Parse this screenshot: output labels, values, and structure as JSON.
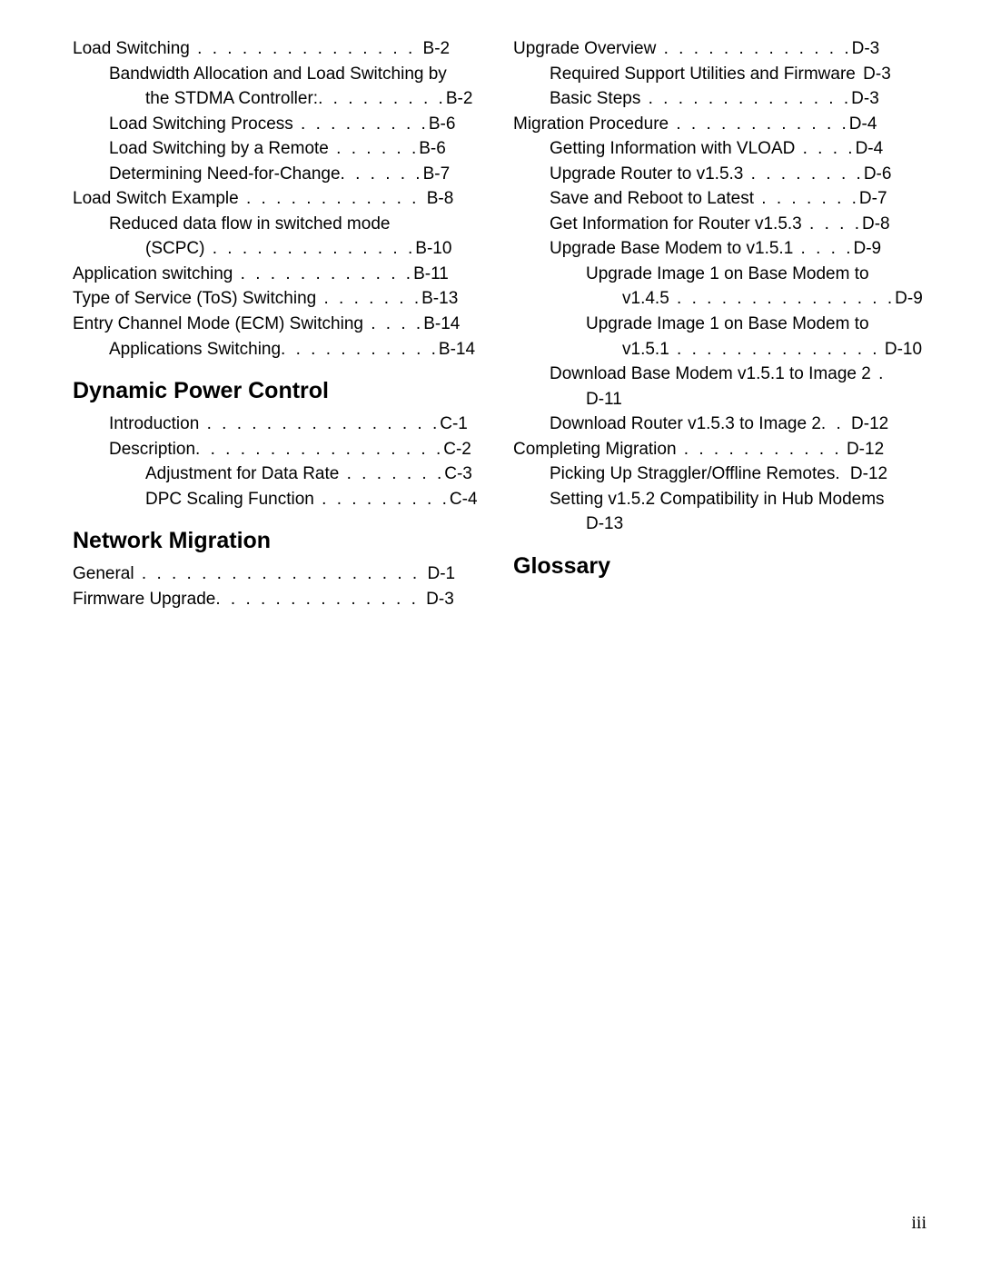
{
  "left": [
    {
      "indent": 0,
      "text": "Load Switching",
      "dots": " . . . . . . . . . . . . . . .  ",
      "page": "B-2"
    },
    {
      "indent": 1,
      "text": "Bandwidth Allocation and Load Switching by",
      "dots": "",
      "page": ""
    },
    {
      "indent": 2,
      "text": "the STDMA Controller:",
      "dots": ". . . . . . . . .",
      "page": "B-2"
    },
    {
      "indent": 1,
      "text": "Load Switching Process",
      "dots": " . . . . . . . . .",
      "page": "B-6"
    },
    {
      "indent": 1,
      "text": "Load Switching by a Remote",
      "dots": "  . . . . . .",
      "page": "B-6"
    },
    {
      "indent": 1,
      "text": "Determining Need-for-Change",
      "dots": ". . . . . .",
      "page": "B-7"
    },
    {
      "indent": 0,
      "text": "Load Switch Example",
      "dots": " . . . . . . . . . . . .  ",
      "page": "B-8"
    },
    {
      "indent": 1,
      "text": "Reduced data flow in switched mode",
      "dots": "",
      "page": ""
    },
    {
      "indent": 2,
      "text": "(SCPC)",
      "dots": "  . . . . . . . . . . . . . .",
      "page": "B-10"
    },
    {
      "indent": 0,
      "text": "Application switching",
      "dots": "  . . . . . . . . . . . .",
      "page": "B-11"
    },
    {
      "indent": 0,
      "text": "Type of Service (ToS) Switching",
      "dots": "  . . . . . . .",
      "page": "B-13"
    },
    {
      "indent": 0,
      "text": "Entry Channel Mode (ECM) Switching",
      "dots": "  . . . .",
      "page": "B-14"
    },
    {
      "indent": 1,
      "text": "Applications Switching",
      "dots": ". . . . . . . . . . .",
      "page": "B-14"
    }
  ],
  "dpc_head": "Dynamic Power Control",
  "dpc": [
    {
      "indent": 1,
      "text": "Introduction",
      "dots": " . . . . . . . . . . . . . . . .",
      "page": "C-1"
    },
    {
      "indent": 1,
      "text": "Description",
      "dots": ". . . . . . . . . . . . . . . . .",
      "page": "C-2"
    },
    {
      "indent": 2,
      "text": "Adjustment for Data Rate",
      "dots": " . . . . . . .",
      "page": "C-3"
    },
    {
      "indent": 2,
      "text": "DPC Scaling Function",
      "dots": " . . . . . . . . .",
      "page": "C-4"
    }
  ],
  "nm_head": "Network Migration",
  "nm": [
    {
      "indent": 0,
      "text": "General",
      "dots": " . . . . . . . . . . . . . . . . . . . ",
      "page": "D-1"
    },
    {
      "indent": 0,
      "text": "Firmware Upgrade",
      "dots": ". . . . . . . . . . . . . . ",
      "page": "D-3"
    }
  ],
  "right": [
    {
      "indent": 0,
      "text": "Upgrade Overview",
      "dots": "  . . . . . . . . . . . . .",
      "page": "D-3"
    },
    {
      "indent": 1,
      "text": "Required Support Utilities and Firmware",
      "dots": " ",
      "page": "D-3"
    },
    {
      "indent": 1,
      "text": "Basic Steps",
      "dots": " . . . . . . . . . . . . . .",
      "page": "D-3"
    },
    {
      "indent": 0,
      "text": "Migration Procedure",
      "dots": "  . . . . . . . . . . . .",
      "page": "D-4"
    },
    {
      "indent": 1,
      "text": "Getting Information with VLOAD",
      "dots": "  . . . .",
      "page": "D-4"
    },
    {
      "indent": 1,
      "text": "Upgrade Router to v1.5.3",
      "dots": " . . . . . . . .",
      "page": "D-6"
    },
    {
      "indent": 1,
      "text": "Save and Reboot to Latest",
      "dots": " . . . . . . .",
      "page": "D-7"
    },
    {
      "indent": 1,
      "text": "Get Information for Router v1.5.3",
      "dots": " . . . .",
      "page": "D-8"
    },
    {
      "indent": 1,
      "text": "Upgrade Base Modem to v1.5.1",
      "dots": "  . . . .",
      "page": "D-9"
    },
    {
      "indent": 2,
      "text": "Upgrade Image 1 on Base Modem to",
      "dots": "",
      "page": ""
    },
    {
      "indent": 3,
      "text": "v1.4.5",
      "dots": "  . . . . . . . . . . . . . . .",
      "page": "D-9"
    },
    {
      "indent": 2,
      "text": "Upgrade Image 1 on Base Modem to",
      "dots": "",
      "page": ""
    },
    {
      "indent": 3,
      "text": "v1.5.1",
      "dots": "  . . . . . . . . . . . . . .",
      "page": " D-10"
    },
    {
      "indent": 1,
      "text": "Download Base Modem v1.5.1 to Image 2",
      "dots": " .",
      "page": ""
    },
    {
      "indent": 2,
      "text": "D-11",
      "dots": "",
      "page": ""
    },
    {
      "indent": 1,
      "text": "Download Router v1.5.3 to Image 2",
      "dots": ". . ",
      "page": "D-12"
    },
    {
      "indent": 0,
      "text": "Completing Migration",
      "dots": " . . . . . . . . . . .",
      "page": " D-12"
    },
    {
      "indent": 1,
      "text": "Picking Up Straggler/Offline Remotes",
      "dots": ". ",
      "page": "D-12"
    },
    {
      "indent": 1,
      "text": "Setting v1.5.2 Compatibility in Hub Modems",
      "dots": "",
      "page": ""
    },
    {
      "indent": 2,
      "text": "D-13",
      "dots": "",
      "page": ""
    }
  ],
  "glossary_head": "Glossary",
  "pagenum": "iii"
}
